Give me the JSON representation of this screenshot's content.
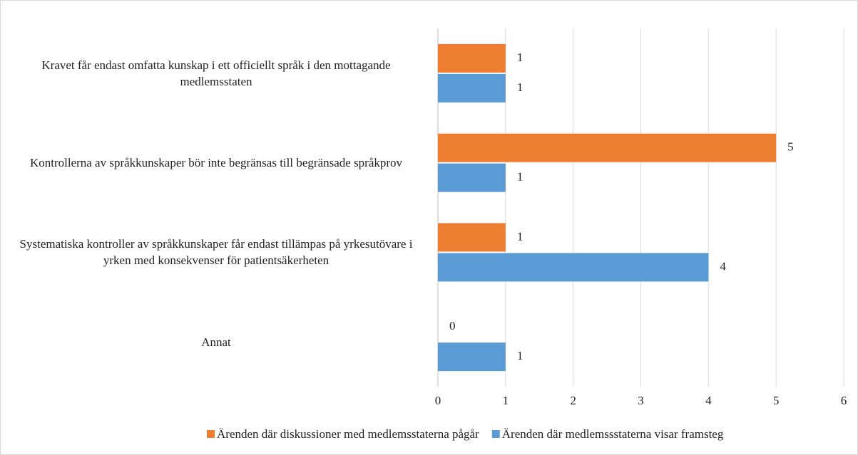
{
  "chart_data": {
    "type": "bar",
    "orientation": "horizontal",
    "categories": [
      "Kravet får endast omfatta kunskap i ett officiellt språk i den mottagande medlemsstaten",
      "Kontrollerna av språkkunskaper bör inte begränsas till begränsade språkprov",
      "Systematiska kontroller av språkkunskaper får endast tillämpas på yrkesutövare i yrken med konsekvenser för patientsäkerheten",
      "Annat"
    ],
    "series": [
      {
        "name": "Ärenden där diskussioner med medlemsstaterna pågår",
        "color": "#ed7d31",
        "values": [
          1,
          5,
          1,
          0
        ]
      },
      {
        "name": "Ärenden där medlemssstaterna visar framsteg",
        "color": "#5b9bd5",
        "values": [
          1,
          1,
          4,
          1
        ]
      }
    ],
    "xlim": [
      0,
      6
    ],
    "xticks": [
      0,
      1,
      2,
      3,
      4,
      5,
      6
    ],
    "grid": true,
    "legend": "bottom"
  }
}
